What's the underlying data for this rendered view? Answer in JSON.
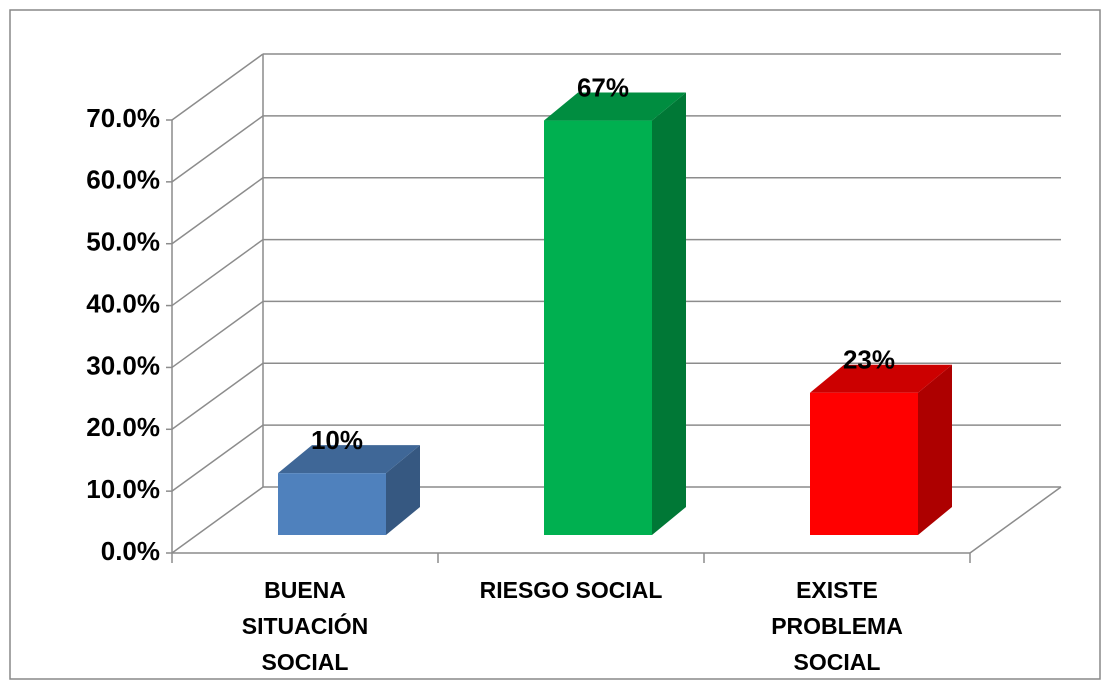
{
  "chart_data": {
    "type": "bar3d",
    "categories": [
      "BUENA SITUACIÓN SOCIAL",
      "RIESGO SOCIAL",
      "EXISTE PROBLEMA SOCIAL"
    ],
    "values": [
      10,
      67,
      23
    ],
    "value_labels": [
      "10%",
      "67%",
      "23%"
    ],
    "colors": [
      "#4f81bd",
      "#00b050",
      "#ff0000"
    ],
    "ylim": [
      0,
      70
    ],
    "yticks": [
      {
        "value": 0,
        "label": "0.0%"
      },
      {
        "value": 10,
        "label": "10.0%"
      },
      {
        "value": 20,
        "label": "20.0%"
      },
      {
        "value": 30,
        "label": "30.0%"
      },
      {
        "value": 40,
        "label": "40.0%"
      },
      {
        "value": 50,
        "label": "50.0%"
      },
      {
        "value": 60,
        "label": "60.0%"
      },
      {
        "value": 70,
        "label": "70.0%"
      }
    ],
    "grid": true
  }
}
